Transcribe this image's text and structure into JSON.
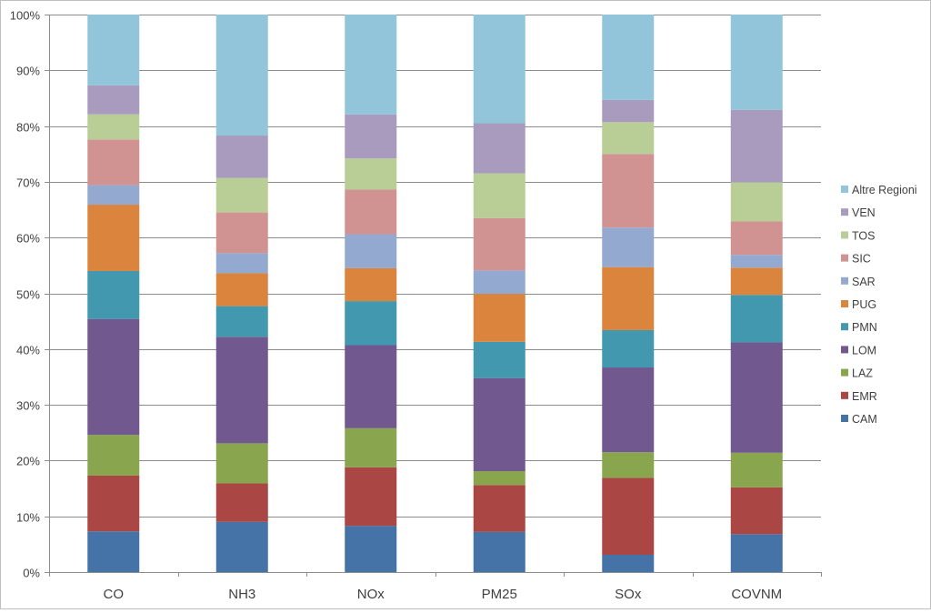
{
  "chart_data": {
    "type": "bar",
    "stacked": true,
    "percent_stacked": true,
    "title": "",
    "xlabel": "",
    "ylabel": "",
    "categories": [
      "CO",
      "NH3",
      "NOx",
      "PM25",
      "SOx",
      "COVNM"
    ],
    "y_ticks": [
      "0%",
      "10%",
      "20%",
      "30%",
      "40%",
      "50%",
      "60%",
      "70%",
      "80%",
      "90%",
      "100%"
    ],
    "ylim": [
      0,
      100
    ],
    "grid": true,
    "legend_position": "right",
    "series": [
      {
        "name": "CAM",
        "color": "#4572a7",
        "values": [
          7.3,
          9.0,
          8.3,
          7.2,
          3.1,
          6.8
        ]
      },
      {
        "name": "EMR",
        "color": "#aa4643",
        "values": [
          10.0,
          6.9,
          10.5,
          8.4,
          13.8,
          8.4
        ]
      },
      {
        "name": "LAZ",
        "color": "#89a54e",
        "values": [
          7.3,
          7.2,
          7.0,
          2.5,
          4.6,
          6.2
        ]
      },
      {
        "name": "LOM",
        "color": "#71588f",
        "values": [
          20.8,
          19.1,
          14.9,
          16.7,
          15.2,
          19.8
        ]
      },
      {
        "name": "PMN",
        "color": "#4198af",
        "values": [
          8.6,
          5.5,
          7.9,
          6.5,
          6.7,
          8.5
        ]
      },
      {
        "name": "PUG",
        "color": "#db843d",
        "values": [
          11.9,
          5.9,
          5.9,
          8.6,
          11.3,
          4.9
        ]
      },
      {
        "name": "SAR",
        "color": "#93a9cf",
        "values": [
          3.5,
          3.6,
          6.1,
          4.2,
          7.1,
          2.3
        ]
      },
      {
        "name": "SIC",
        "color": "#d19392",
        "values": [
          8.2,
          7.3,
          8.0,
          9.4,
          13.2,
          6.0
        ]
      },
      {
        "name": "TOS",
        "color": "#b9cd96",
        "values": [
          4.5,
          6.2,
          5.6,
          8.0,
          5.7,
          7.0
        ]
      },
      {
        "name": "VEN",
        "color": "#a99bbd",
        "values": [
          5.2,
          7.6,
          7.9,
          9.0,
          4.0,
          13.0
        ]
      },
      {
        "name": "Altre Regioni",
        "color": "#92c5d9",
        "values": [
          12.7,
          21.7,
          17.9,
          19.5,
          15.3,
          17.1
        ]
      }
    ]
  }
}
